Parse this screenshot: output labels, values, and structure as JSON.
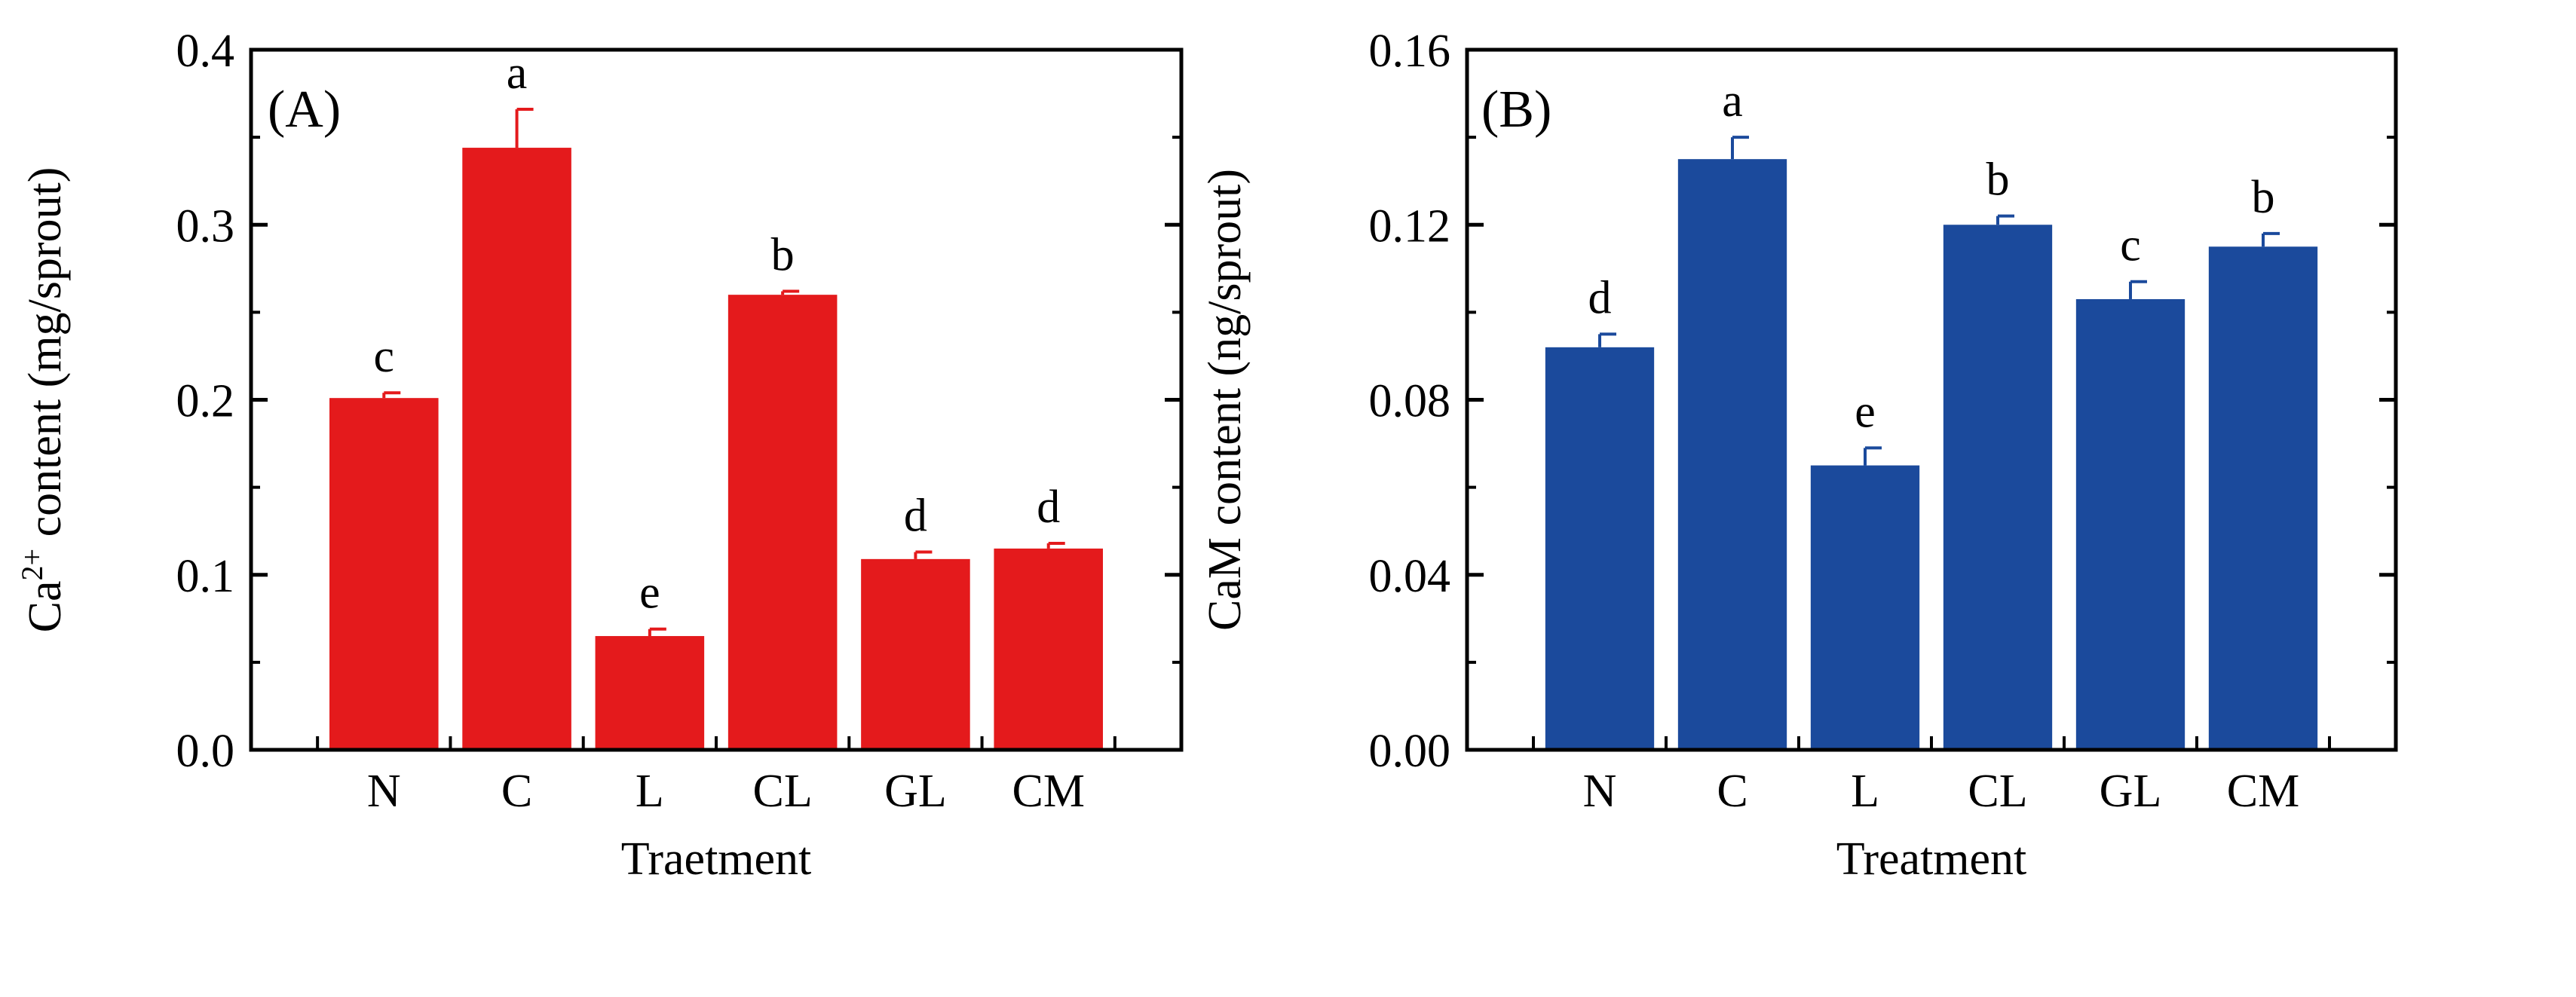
{
  "colors": {
    "panel_a_bar": "#e41a1c",
    "panel_b_bar": "#1b4a9c",
    "axis": "#000000"
  },
  "chart_data": [
    {
      "type": "bar",
      "panel_label": "(A)",
      "categories": [
        "N",
        "C",
        "L",
        "CL",
        "GL",
        "CM"
      ],
      "values": [
        0.201,
        0.344,
        0.065,
        0.26,
        0.109,
        0.115
      ],
      "errors": [
        0.003,
        0.022,
        0.004,
        0.002,
        0.004,
        0.003
      ],
      "significance": [
        "c",
        "a",
        "e",
        "b",
        "d",
        "d"
      ],
      "xlabel": "Traetment",
      "ylabel_prefix": "Ca",
      "ylabel_superscript": "2+",
      "ylabel_suffix": " content (mg/sprout)",
      "ylim": [
        0,
        0.4
      ],
      "yticks": [
        "0.0",
        "0.1",
        "0.2",
        "0.3",
        "0.4"
      ],
      "ytick_values": [
        0,
        0.1,
        0.2,
        0.3,
        0.4
      ],
      "color": "#e41a1c",
      "grid": false
    },
    {
      "type": "bar",
      "panel_label": "(B)",
      "categories": [
        "N",
        "C",
        "L",
        "CL",
        "GL",
        "CM"
      ],
      "values": [
        0.092,
        0.135,
        0.065,
        0.12,
        0.103,
        0.115
      ],
      "errors": [
        0.003,
        0.005,
        0.004,
        0.002,
        0.004,
        0.003
      ],
      "significance": [
        "d",
        "a",
        "e",
        "b",
        "c",
        "b"
      ],
      "xlabel": "Treatment",
      "ylabel_prefix": "CaM content (ng/sprout)",
      "ylabel_superscript": "",
      "ylabel_suffix": "",
      "ylim": [
        0,
        0.16
      ],
      "yticks": [
        "0.00",
        "0.04",
        "0.08",
        "0.12",
        "0.16"
      ],
      "ytick_values": [
        0,
        0.04,
        0.08,
        0.12,
        0.16
      ],
      "color": "#1b4a9c",
      "grid": false
    }
  ]
}
